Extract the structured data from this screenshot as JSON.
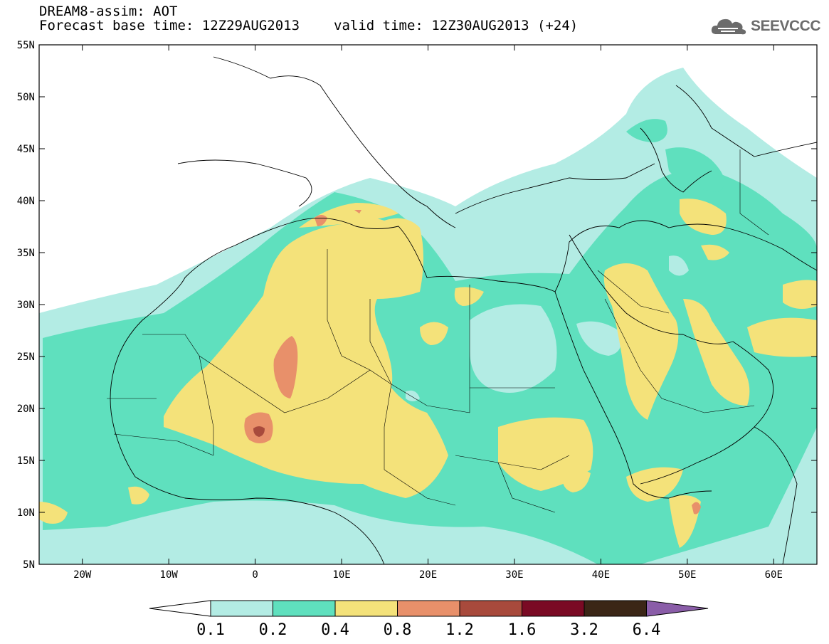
{
  "header": {
    "title_line1": "DREAM8-assim: AOT",
    "base_time": "Forecast base time: 12Z29AUG2013",
    "valid_time": "valid time: 12Z30AUG2013 (+24)"
  },
  "logo": {
    "text": "SEEVCCC",
    "icon": "cloud-icon",
    "color": "#6b6b6b"
  },
  "map": {
    "lat_labels": [
      "55N",
      "50N",
      "45N",
      "40N",
      "35N",
      "30N",
      "25N",
      "20N",
      "15N",
      "10N",
      "5N"
    ],
    "lon_labels": [
      "20W",
      "10W",
      "0",
      "10E",
      "20E",
      "30E",
      "40E",
      "50E",
      "60E"
    ],
    "colorbar": {
      "labels": [
        "0.1",
        "0.2",
        "0.4",
        "0.8",
        "1.2",
        "1.6",
        "3.2",
        "6.4"
      ],
      "colors": [
        "#ffffff",
        "#b3ece4",
        "#5fe0be",
        "#f4e27a",
        "#e8906a",
        "#a84a3c",
        "#7a0a24",
        "#3b2616",
        "#8a5da8"
      ]
    }
  }
}
